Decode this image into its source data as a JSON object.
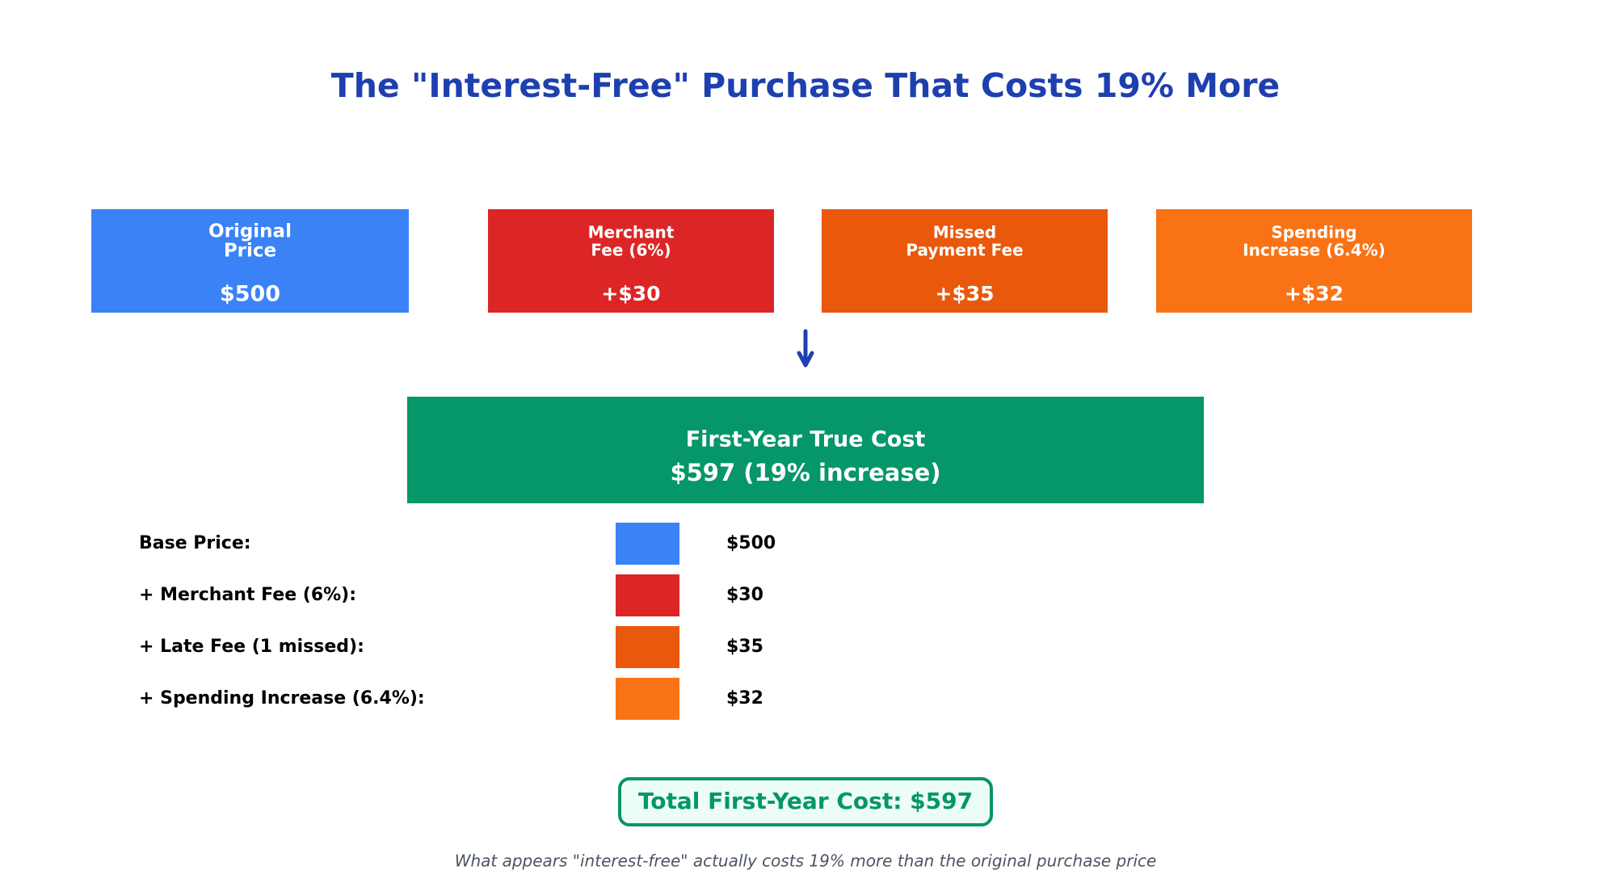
{
  "header": {
    "title": "The \"Interest-Free\" Purchase That Costs 19% More"
  },
  "cards": [
    {
      "label": [
        "Original",
        "Price"
      ],
      "amount": "$500",
      "color": "#3b82f6"
    },
    {
      "label": [
        "Merchant",
        "Fee (6%)"
      ],
      "amount": "+$30",
      "color": "#dc2626"
    },
    {
      "label": [
        "Missed",
        "Payment Fee"
      ],
      "amount": "+$35",
      "color": "#ea580c"
    },
    {
      "label": [
        "Spending",
        "Increase (6.4%)"
      ],
      "amount": "+$32",
      "color": "#f97316"
    }
  ],
  "result": {
    "label": "First-Year True Cost",
    "amount": "$597 (19% increase)",
    "color": "#059669"
  },
  "breakdown": [
    {
      "label": "Base Price:",
      "amount": "$500",
      "color": "#3b82f6"
    },
    {
      "label": "+ Merchant Fee (6%):",
      "amount": "$30",
      "color": "#dc2626"
    },
    {
      "label": "+ Late Fee (1 missed):",
      "amount": "$35",
      "color": "#ea580c"
    },
    {
      "label": "+ Spending Increase (6.4%):",
      "amount": "$32",
      "color": "#f97316"
    }
  ],
  "total": "Total First-Year Cost: $597",
  "footnote": "What appears \"interest-free\" actually costs 19% more than the original purchase price"
}
